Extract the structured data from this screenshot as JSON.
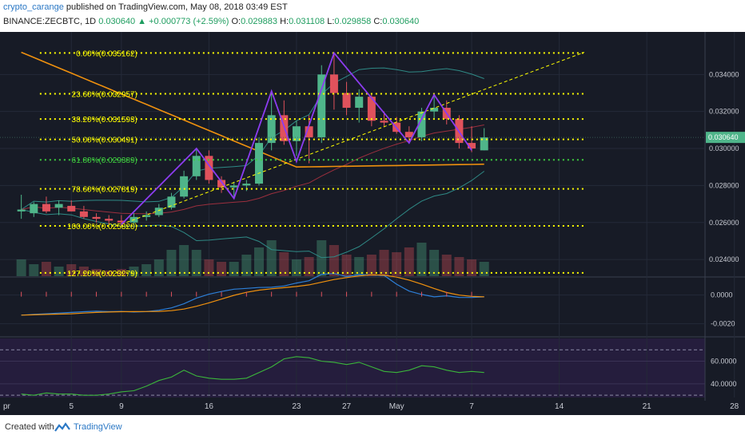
{
  "header": {
    "author": "crypto_carange",
    "published_text": "published on TradingView.com, May 08, 2018 03:49 EST",
    "symbol_line": "BINANCE:ZECBTC, 1D",
    "close_value": "0.030640",
    "change_arrow": "▲",
    "change": "+0.000773 (+2.59%)",
    "o_label": "O:",
    "o_value": "0.029883",
    "h_label": "H:",
    "h_value": "0.031108",
    "l_label": "L:",
    "l_value": "0.029858",
    "c_label": "C:",
    "c_value": "0.030640"
  },
  "footer": {
    "created_with": "Created with",
    "brand": "TradingView",
    "brand_icon": "tradingview-logo-icon"
  },
  "colors": {
    "background": "#171b26",
    "candle_up": "#4fb58a",
    "candle_down": "#e0525c",
    "fib_yellow": "#ffff00",
    "fib_green": "#3fd03f",
    "pattern_purple": "#8c3cf0",
    "ma_orange": "#f0910e",
    "bollinger_teal": "#2f8a86",
    "macd_blue": "#2d7fd7",
    "rsi_green": "#3bb53b"
  },
  "chart_data": [
    {
      "type": "candlestick",
      "title": "BINANCE:ZECBTC, 1D",
      "x_tick_labels": [
        "pr",
        "5",
        "9",
        "16",
        "23",
        "27",
        "May",
        "7",
        "14",
        "21",
        "28"
      ],
      "y_tick_labels": [
        "0.034000",
        "0.032000",
        "0.030000",
        "0.028000",
        "0.026000",
        "0.024000"
      ],
      "ylim": [
        0.0231,
        0.0363
      ],
      "last_price_label": "0.030640",
      "fibonacci_levels": [
        {
          "label": "0.00%(0.035162)",
          "value": 0.035162,
          "color": "yellow"
        },
        {
          "label": "23.60%(0.032957)",
          "value": 0.032957,
          "color": "yellow"
        },
        {
          "label": "38.20%(0.031593)",
          "value": 0.031593,
          "color": "yellow"
        },
        {
          "label": "50.00%(0.030491)",
          "value": 0.030491,
          "color": "yellow"
        },
        {
          "label": "61.80%(0.029389)",
          "value": 0.029389,
          "color": "green"
        },
        {
          "label": "78.60%(0.027819)",
          "value": 0.027819,
          "color": "yellow"
        },
        {
          "label": "100.00%(0.025820)",
          "value": 0.02582,
          "color": "yellow"
        },
        {
          "label": "127.20%(0.023279)",
          "value": 0.023279,
          "color": "yellow"
        }
      ],
      "candles": [
        {
          "date": "2018-04-01",
          "open": 0.0266,
          "high": 0.0275,
          "low": 0.0262,
          "close": 0.0267
        },
        {
          "date": "2018-04-02",
          "open": 0.0265,
          "high": 0.0271,
          "low": 0.0263,
          "close": 0.027
        },
        {
          "date": "2018-04-03",
          "open": 0.027,
          "high": 0.0274,
          "low": 0.0265,
          "close": 0.0266
        },
        {
          "date": "2018-04-04",
          "open": 0.0268,
          "high": 0.0272,
          "low": 0.0264,
          "close": 0.027
        },
        {
          "date": "2018-04-05",
          "open": 0.0269,
          "high": 0.0272,
          "low": 0.0266,
          "close": 0.0266
        },
        {
          "date": "2018-04-06",
          "open": 0.0266,
          "high": 0.0269,
          "low": 0.0262,
          "close": 0.0263
        },
        {
          "date": "2018-04-07",
          "open": 0.0263,
          "high": 0.0265,
          "low": 0.026,
          "close": 0.0262
        },
        {
          "date": "2018-04-08",
          "open": 0.0262,
          "high": 0.0264,
          "low": 0.0259,
          "close": 0.0261
        },
        {
          "date": "2018-04-09",
          "open": 0.0261,
          "high": 0.0264,
          "low": 0.0258,
          "close": 0.026
        },
        {
          "date": "2018-04-10",
          "open": 0.026,
          "high": 0.0265,
          "low": 0.0259,
          "close": 0.0263
        },
        {
          "date": "2018-04-11",
          "open": 0.0263,
          "high": 0.0266,
          "low": 0.0261,
          "close": 0.0264
        },
        {
          "date": "2018-04-12",
          "open": 0.0264,
          "high": 0.027,
          "low": 0.0263,
          "close": 0.0268
        },
        {
          "date": "2018-04-13",
          "open": 0.0268,
          "high": 0.0276,
          "low": 0.0267,
          "close": 0.0274
        },
        {
          "date": "2018-04-14",
          "open": 0.0274,
          "high": 0.0288,
          "low": 0.0273,
          "close": 0.0285
        },
        {
          "date": "2018-04-15",
          "open": 0.0285,
          "high": 0.03,
          "low": 0.0283,
          "close": 0.0296
        },
        {
          "date": "2018-04-16",
          "open": 0.0296,
          "high": 0.0299,
          "low": 0.0281,
          "close": 0.0283
        },
        {
          "date": "2018-04-17",
          "open": 0.0283,
          "high": 0.0285,
          "low": 0.0276,
          "close": 0.0279
        },
        {
          "date": "2018-04-18",
          "open": 0.0279,
          "high": 0.0282,
          "low": 0.0273,
          "close": 0.028
        },
        {
          "date": "2018-04-19",
          "open": 0.028,
          "high": 0.0283,
          "low": 0.0277,
          "close": 0.0281
        },
        {
          "date": "2018-04-20",
          "open": 0.0281,
          "high": 0.0306,
          "low": 0.028,
          "close": 0.0303
        },
        {
          "date": "2018-04-21",
          "open": 0.0303,
          "high": 0.0331,
          "low": 0.0299,
          "close": 0.0318
        },
        {
          "date": "2018-04-22",
          "open": 0.0318,
          "high": 0.0326,
          "low": 0.0302,
          "close": 0.0304
        },
        {
          "date": "2018-04-23",
          "open": 0.0304,
          "high": 0.0315,
          "low": 0.0296,
          "close": 0.0312
        },
        {
          "date": "2018-04-24",
          "open": 0.0312,
          "high": 0.0318,
          "low": 0.0292,
          "close": 0.0306
        },
        {
          "date": "2018-04-25",
          "open": 0.0306,
          "high": 0.0345,
          "low": 0.0303,
          "close": 0.034
        },
        {
          "date": "2018-04-26",
          "open": 0.034,
          "high": 0.0352,
          "low": 0.0321,
          "close": 0.033
        },
        {
          "date": "2018-04-27",
          "open": 0.033,
          "high": 0.0336,
          "low": 0.0318,
          "close": 0.0322
        },
        {
          "date": "2018-04-28",
          "open": 0.0322,
          "high": 0.0332,
          "low": 0.0314,
          "close": 0.0328
        },
        {
          "date": "2018-04-29",
          "open": 0.0328,
          "high": 0.033,
          "low": 0.0312,
          "close": 0.0315
        },
        {
          "date": "2018-04-30",
          "open": 0.0315,
          "high": 0.032,
          "low": 0.0312,
          "close": 0.0314
        },
        {
          "date": "2018-05-01",
          "open": 0.0314,
          "high": 0.0317,
          "low": 0.0308,
          "close": 0.0309
        },
        {
          "date": "2018-05-02",
          "open": 0.0309,
          "high": 0.0312,
          "low": 0.0303,
          "close": 0.0306
        },
        {
          "date": "2018-05-03",
          "open": 0.0306,
          "high": 0.0322,
          "low": 0.0304,
          "close": 0.032
        },
        {
          "date": "2018-05-04",
          "open": 0.032,
          "high": 0.0329,
          "low": 0.0316,
          "close": 0.0322
        },
        {
          "date": "2018-05-05",
          "open": 0.0322,
          "high": 0.0326,
          "low": 0.0313,
          "close": 0.0316
        },
        {
          "date": "2018-05-06",
          "open": 0.0316,
          "high": 0.0318,
          "low": 0.03,
          "close": 0.0303
        },
        {
          "date": "2018-05-07",
          "open": 0.0303,
          "high": 0.0312,
          "low": 0.0298,
          "close": 0.03
        },
        {
          "date": "2018-05-08",
          "open": 0.0299,
          "high": 0.0311,
          "low": 0.0299,
          "close": 0.0306
        }
      ],
      "volume": [
        0.35,
        0.25,
        0.3,
        0.2,
        0.25,
        0.2,
        0.15,
        0.12,
        0.15,
        0.2,
        0.25,
        0.35,
        0.55,
        0.65,
        0.55,
        0.35,
        0.3,
        0.3,
        0.45,
        0.6,
        0.75,
        0.5,
        0.35,
        0.4,
        0.75,
        0.65,
        0.45,
        0.4,
        0.45,
        0.55,
        0.5,
        0.6,
        0.7,
        0.55,
        0.45,
        0.4,
        0.35,
        0.3
      ],
      "pattern_zigzag": [
        {
          "date": "2018-04-09",
          "price": 0.0259
        },
        {
          "date": "2018-04-15",
          "price": 0.03
        },
        {
          "date": "2018-04-18",
          "price": 0.0273
        },
        {
          "date": "2018-04-21",
          "price": 0.0331
        },
        {
          "date": "2018-04-23",
          "price": 0.0293
        },
        {
          "date": "2018-04-26",
          "price": 0.03516
        },
        {
          "date": "2018-05-02",
          "price": 0.0303
        },
        {
          "date": "2018-05-04",
          "price": 0.0329
        },
        {
          "date": "2018-05-07",
          "price": 0.0299
        }
      ],
      "trendline": [
        {
          "date": "2018-04-09",
          "price": 0.0259
        },
        {
          "date": "2018-05-16",
          "price": 0.0352
        }
      ]
    },
    {
      "type": "line",
      "title": "MACD",
      "y_tick_labels": [
        "0.0000",
        "-0.0020"
      ],
      "ylim": [
        -0.0028,
        0.0012
      ]
    },
    {
      "type": "line",
      "title": "RSI",
      "y_tick_labels": [
        "60.0000",
        "40.0000"
      ],
      "ylim": [
        28,
        80
      ],
      "series": [
        {
          "values": [
            31,
            30,
            32,
            31,
            31,
            30,
            30,
            31,
            33,
            34,
            38,
            43,
            46,
            52,
            47,
            45,
            44,
            44,
            45,
            50,
            55,
            62,
            64,
            63,
            60,
            59,
            57,
            59,
            55,
            51,
            50,
            52,
            56,
            55,
            52,
            50,
            51,
            50
          ]
        }
      ]
    }
  ]
}
